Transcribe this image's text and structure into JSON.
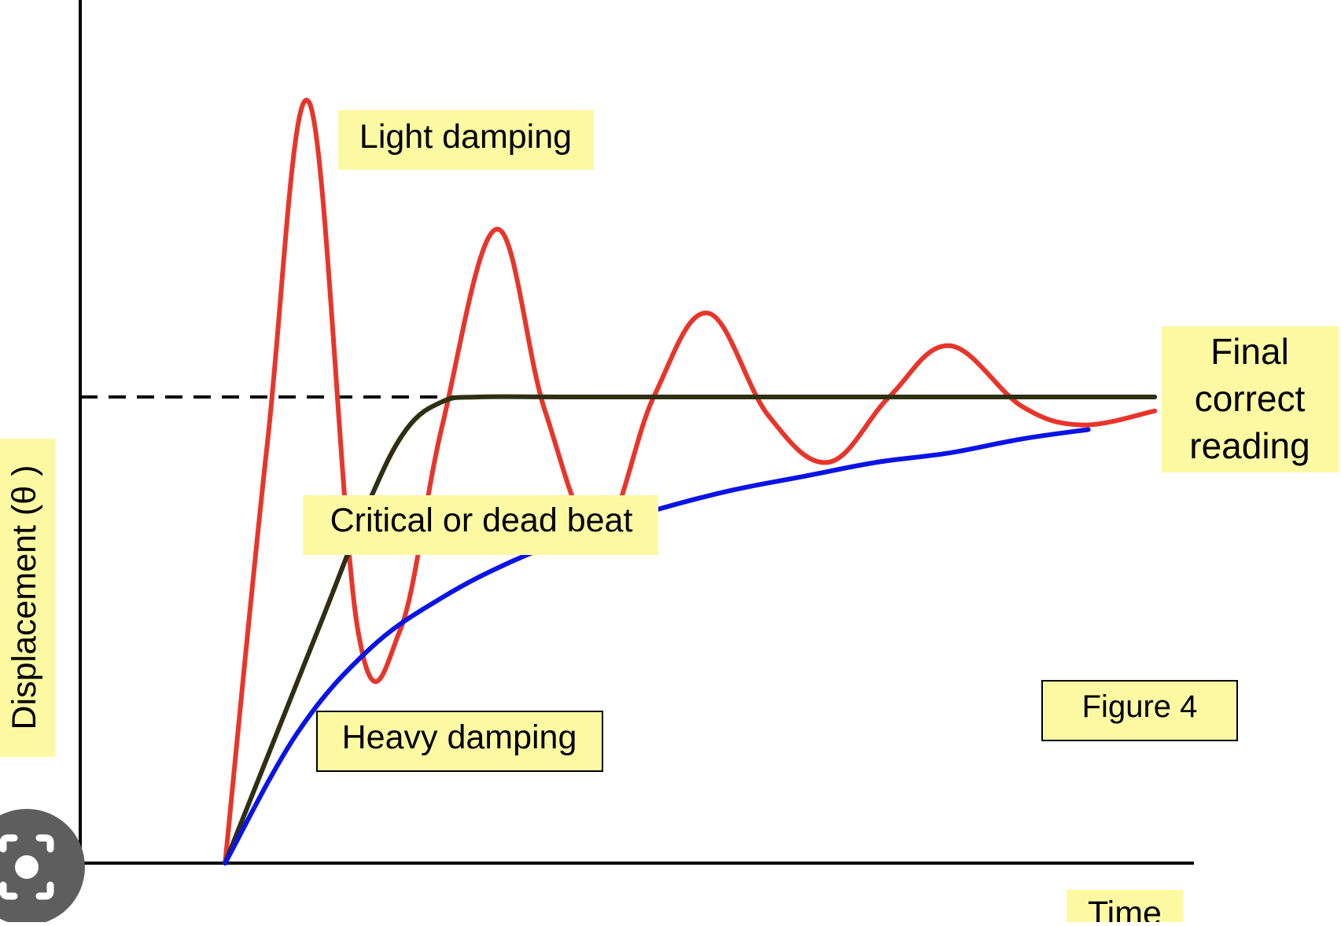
{
  "chart_data": {
    "type": "line",
    "title": "",
    "xlabel": "Time",
    "ylabel": "Displacement (θ )",
    "xlim": [
      0,
      10
    ],
    "ylim": [
      0,
      1.6
    ],
    "grid": false,
    "reference_line": {
      "label": "Final correct reading",
      "label_lines": [
        "Final",
        "correct",
        "reading"
      ],
      "y": 1.0,
      "style": "dashed"
    },
    "series": [
      {
        "name": "Light damping",
        "color": "#e8352b",
        "x": [
          1.2,
          1.55,
          1.9,
          2.3,
          2.65,
          3.0,
          3.45,
          3.85,
          4.3,
          4.75,
          5.2,
          5.7,
          6.2,
          6.7,
          7.2,
          7.8,
          8.3,
          8.9
        ],
        "y": [
          0.0,
          0.9,
          1.63,
          0.5,
          0.5,
          0.94,
          1.36,
          0.97,
          0.7,
          1.0,
          1.18,
          0.96,
          0.86,
          1.0,
          1.11,
          0.98,
          0.94,
          0.97
        ]
      },
      {
        "name": "Critical or dead beat",
        "color": "#2f2f12",
        "x": [
          1.2,
          1.6,
          2.0,
          2.4,
          2.7,
          3.0,
          3.3,
          4.0,
          6.0,
          8.0,
          8.9
        ],
        "y": [
          0.0,
          0.26,
          0.52,
          0.78,
          0.93,
          0.99,
          1.0,
          1.0,
          1.0,
          1.0,
          1.0
        ]
      },
      {
        "name": "Heavy damping",
        "color": "#0a14e6",
        "x": [
          1.2,
          1.8,
          2.4,
          3.0,
          3.6,
          4.2,
          4.8,
          5.4,
          6.0,
          6.6,
          7.2,
          7.8,
          8.35
        ],
        "y": [
          0.0,
          0.28,
          0.46,
          0.57,
          0.65,
          0.71,
          0.76,
          0.8,
          0.83,
          0.86,
          0.88,
          0.91,
          0.93
        ]
      }
    ],
    "labels": {
      "light": "Light damping",
      "critical": "Critical or dead beat",
      "heavy": "Heavy damping",
      "figure": "Figure 4"
    },
    "label_color": "#fdf9a3",
    "axis_color": "#000000"
  },
  "overlay": {
    "icon": "lens-icon"
  }
}
